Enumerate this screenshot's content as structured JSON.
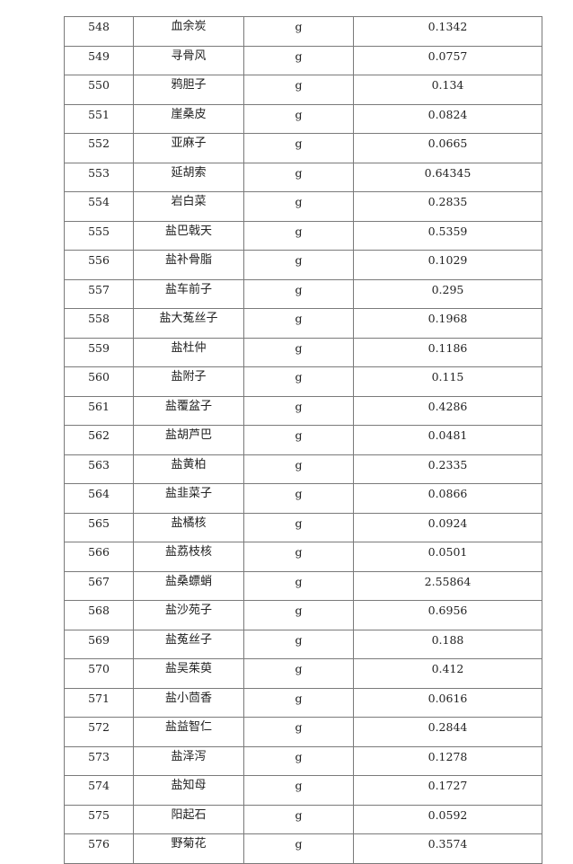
{
  "table": {
    "rows": [
      {
        "no": "548",
        "name": "血余炭",
        "unit": "g",
        "value": "0.1342"
      },
      {
        "no": "549",
        "name": "寻骨风",
        "unit": "g",
        "value": "0.0757"
      },
      {
        "no": "550",
        "name": "鸦胆子",
        "unit": "g",
        "value": "0.134"
      },
      {
        "no": "551",
        "name": "崖桑皮",
        "unit": "g",
        "value": "0.0824"
      },
      {
        "no": "552",
        "name": "亚麻子",
        "unit": "g",
        "value": "0.0665"
      },
      {
        "no": "553",
        "name": "延胡索",
        "unit": "g",
        "value": "0.64345"
      },
      {
        "no": "554",
        "name": "岩白菜",
        "unit": "g",
        "value": "0.2835"
      },
      {
        "no": "555",
        "name": "盐巴戟天",
        "unit": "g",
        "value": "0.5359"
      },
      {
        "no": "556",
        "name": "盐补骨脂",
        "unit": "g",
        "value": "0.1029"
      },
      {
        "no": "557",
        "name": "盐车前子",
        "unit": "g",
        "value": "0.295"
      },
      {
        "no": "558",
        "name": "盐大菟丝子",
        "unit": "g",
        "value": "0.1968"
      },
      {
        "no": "559",
        "name": "盐杜仲",
        "unit": "g",
        "value": "0.1186"
      },
      {
        "no": "560",
        "name": "盐附子",
        "unit": "g",
        "value": "0.115"
      },
      {
        "no": "561",
        "name": "盐覆盆子",
        "unit": "g",
        "value": "0.4286"
      },
      {
        "no": "562",
        "name": "盐胡芦巴",
        "unit": "g",
        "value": "0.0481"
      },
      {
        "no": "563",
        "name": "盐黄柏",
        "unit": "g",
        "value": "0.2335"
      },
      {
        "no": "564",
        "name": "盐韭菜子",
        "unit": "g",
        "value": "0.0866"
      },
      {
        "no": "565",
        "name": "盐橘核",
        "unit": "g",
        "value": "0.0924"
      },
      {
        "no": "566",
        "name": "盐荔枝核",
        "unit": "g",
        "value": "0.0501"
      },
      {
        "no": "567",
        "name": "盐桑螵蛸",
        "unit": "g",
        "value": "2.55864"
      },
      {
        "no": "568",
        "name": "盐沙苑子",
        "unit": "g",
        "value": "0.6956"
      },
      {
        "no": "569",
        "name": "盐菟丝子",
        "unit": "g",
        "value": "0.188"
      },
      {
        "no": "570",
        "name": "盐吴茱萸",
        "unit": "g",
        "value": "0.412"
      },
      {
        "no": "571",
        "name": "盐小茴香",
        "unit": "g",
        "value": "0.0616"
      },
      {
        "no": "572",
        "name": "盐益智仁",
        "unit": "g",
        "value": "0.2844"
      },
      {
        "no": "573",
        "name": "盐泽泻",
        "unit": "g",
        "value": "0.1278"
      },
      {
        "no": "574",
        "name": "盐知母",
        "unit": "g",
        "value": "0.1727"
      },
      {
        "no": "575",
        "name": "阳起石",
        "unit": "g",
        "value": "0.0592"
      },
      {
        "no": "576",
        "name": "野菊花",
        "unit": "g",
        "value": "0.3574"
      }
    ]
  }
}
